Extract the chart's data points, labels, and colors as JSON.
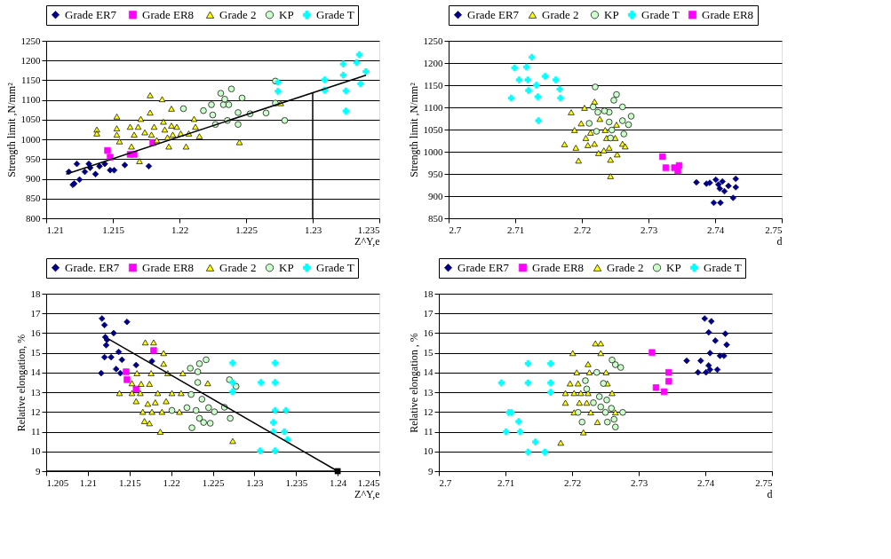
{
  "chart_data": [
    {
      "type": "scatter",
      "xlabel": "Z^Y,e",
      "ylabel": "Strength limit ,N/mm²",
      "xlim": [
        1.21,
        1.235
      ],
      "xticks": [
        1.21,
        1.215,
        1.22,
        1.225,
        1.23,
        1.235
      ],
      "ylim": [
        800,
        1250
      ],
      "yticks": [
        800,
        850,
        900,
        950,
        1000,
        1050,
        1100,
        1150,
        1200,
        1250
      ],
      "grid": "y",
      "legend": "top",
      "series": [
        {
          "name": "Grade  ER7",
          "color": "#000080",
          "marker": "diamond",
          "x": [
            1.2117,
            1.212,
            1.2121,
            1.2123,
            1.2125,
            1.2129,
            1.2132,
            1.2137,
            1.2133,
            1.214,
            1.2144,
            1.2148,
            1.2151,
            1.2159,
            1.2177
          ],
          "values": [
            918,
            885,
            888,
            938,
            898,
            918,
            938,
            912,
            928,
            932,
            938,
            922,
            922,
            935,
            932
          ]
        },
        {
          "name": "Grade  ER8",
          "color": "#ff00ff",
          "marker": "square",
          "x": [
            1.2146,
            1.2148,
            1.2163,
            1.2166,
            1.218
          ],
          "values": [
            972,
            955,
            962,
            962,
            992
          ]
        },
        {
          "name": "Grade 2",
          "color": "#ffff00",
          "marker": "triangle",
          "x": [
            1.2138,
            1.2138,
            1.2153,
            1.2153,
            1.2153,
            1.2155,
            1.2163,
            1.2164,
            1.217,
            1.2169,
            1.2171,
            1.2174,
            1.2178,
            1.2178,
            1.2179,
            1.2181,
            1.2183,
            1.2187,
            1.2188,
            1.2189,
            1.2191,
            1.2192,
            1.2194,
            1.2194,
            1.2195,
            1.2198,
            1.2201,
            1.2205,
            1.2207,
            1.2211,
            1.2212,
            1.2215,
            1.2245,
            1.2276,
            1.2166
          ],
          "values": [
            1025,
            1015,
            1058,
            1028,
            1012,
            995,
            1032,
            982,
            945,
            1032,
            1052,
            1018,
            1112,
            1068,
            1012,
            1032,
            998,
            1102,
            1045,
            1025,
            1005,
            982,
            1035,
            1078,
            1012,
            1032,
            1015,
            982,
            1015,
            1052,
            1032,
            1008,
            993,
            1092,
            1012
          ]
        },
        {
          "name": "KP",
          "color": "#ccffcc",
          "marker": "circle",
          "x": [
            1.2203,
            1.2218,
            1.2224,
            1.2225,
            1.2227,
            1.2231,
            1.2233,
            1.2236,
            1.2237,
            1.2239,
            1.2244,
            1.2244,
            1.2247,
            1.2253,
            1.2265,
            1.2272,
            1.2272,
            1.2279,
            1.2234
          ],
          "values": [
            1078,
            1073,
            1088,
            1062,
            1038,
            1117,
            1088,
            1048,
            1088,
            1128,
            1068,
            1038,
            1105,
            1065,
            1067,
            1148,
            1092,
            1048,
            1102
          ]
        },
        {
          "name": "Grade T",
          "color": "#00ffff",
          "marker": "cross",
          "x": [
            1.2274,
            1.2274,
            1.2309,
            1.2309,
            1.2323,
            1.2323,
            1.2325,
            1.2325,
            1.2335,
            1.2333,
            1.234,
            1.2336
          ],
          "values": [
            1145,
            1122,
            1151,
            1125,
            1191,
            1163,
            1123,
            1072,
            1215,
            1195,
            1172,
            1141
          ]
        },
        {
          "type": "line",
          "color": "#000000",
          "x": [
            1.2115,
            1.234
          ],
          "values": [
            912,
            1163
          ]
        },
        {
          "type": "line",
          "color": "#000000",
          "x": [
            1.23,
            1.23
          ],
          "values": [
            800,
            1118
          ]
        }
      ]
    },
    {
      "type": "scatter",
      "xlabel": "d",
      "ylabel": "Strength limit ,N/mm²",
      "xlim": [
        2.7,
        2.75
      ],
      "xticks": [
        2.7,
        2.71,
        2.72,
        2.73,
        2.74,
        2.75
      ],
      "ylim": [
        850,
        1250
      ],
      "yticks": [
        850,
        900,
        950,
        1000,
        1050,
        1100,
        1150,
        1200,
        1250
      ],
      "grid": "y",
      "legend": "top",
      "series": [
        {
          "name": "Grade ER7",
          "color": "#000080",
          "marker": "diamond",
          "x": [
            2.7372,
            2.7387,
            2.7401,
            2.7405,
            2.7407,
            2.7414,
            2.742,
            2.7431,
            2.7431,
            2.7427,
            2.7398,
            2.7408,
            2.7392,
            2.7411
          ],
          "values": [
            931,
            928,
            937,
            926,
            917,
            911,
            923,
            939,
            920,
            896,
            885,
            885,
            930,
            933
          ]
        },
        {
          "name": "Grade  2",
          "color": "#ffff00",
          "marker": "triangle",
          "x": [
            2.7184,
            2.7174,
            2.7189,
            2.7191,
            2.7195,
            2.7204,
            2.7199,
            2.7206,
            2.7209,
            2.7213,
            2.7219,
            2.7225,
            2.7227,
            2.7235,
            2.7237,
            2.7241,
            2.7243,
            2.7243,
            2.725,
            2.7253,
            2.7261,
            2.7265,
            2.7219,
            2.7233,
            2.7252
          ],
          "values": [
            1089,
            1017,
            1049,
            1009,
            980,
            1099,
            1064,
            1031,
            1015,
            1043,
            1113,
            997,
            1074,
            1049,
            1031,
            1009,
            982,
            945,
            1031,
            994,
            1018,
            1012,
            1018,
            1003,
            1061
          ]
        },
        {
          "name": "KP",
          "color": "#ccffcc",
          "marker": "circle",
          "x": [
            2.722,
            2.7217,
            2.7224,
            2.7211,
            2.7222,
            2.7241,
            2.7248,
            2.7252,
            2.7241,
            2.7245,
            2.7261,
            2.7261,
            2.7263,
            2.727,
            2.7274,
            2.7243,
            2.7234
          ],
          "values": [
            1146,
            1101,
            1089,
            1064,
            1046,
            1089,
            1116,
            1129,
            1067,
            1049,
            1101,
            1070,
            1040,
            1061,
            1080,
            1031,
            1092
          ]
        },
        {
          "name": "Grade T",
          "color": "#00ffff",
          "marker": "cross",
          "x": [
            2.7094,
            2.7099,
            2.7106,
            2.7117,
            2.7125,
            2.7119,
            2.712,
            2.7132,
            2.7134,
            2.7135,
            2.7145,
            2.7161,
            2.7167,
            2.7168
          ],
          "values": [
            1121,
            1189,
            1162,
            1191,
            1213,
            1162,
            1138,
            1150,
            1124,
            1070,
            1170,
            1162,
            1141,
            1121
          ]
        },
        {
          "name": "Grade ER8",
          "color": "#ff00ff",
          "marker": "square",
          "x": [
            2.7321,
            2.7326,
            2.7339,
            2.7346,
            2.7344
          ],
          "values": [
            989,
            964,
            964,
            969,
            957
          ]
        }
      ]
    },
    {
      "type": "scatter",
      "xlabel": "Z^Y,e",
      "ylabel": "Relative elongation, %",
      "xlim": [
        1.205,
        1.245
      ],
      "xticks": [
        1.205,
        1.21,
        1.215,
        1.22,
        1.225,
        1.23,
        1.235,
        1.24,
        1.245
      ],
      "ylim": [
        9,
        18
      ],
      "yticks": [
        9,
        10,
        11,
        12,
        13,
        14,
        15,
        16,
        17,
        18
      ],
      "grid": "y",
      "legend": "top",
      "series": [
        {
          "name": "Grade. ER7",
          "color": "#000080",
          "marker": "diamond",
          "x": [
            1.2116,
            1.2117,
            1.212,
            1.2121,
            1.2122,
            1.212,
            1.2128,
            1.2131,
            1.2134,
            1.2137,
            1.2141,
            1.2139,
            1.2147,
            1.2158,
            1.2177,
            1.2123
          ],
          "values": [
            13.97,
            16.74,
            16.41,
            15.8,
            15.39,
            14.78,
            14.78,
            16.0,
            14.18,
            15.05,
            14.65,
            13.97,
            16.57,
            14.38,
            14.58,
            15.66
          ]
        },
        {
          "name": "Grade  ER8",
          "color": "#ff00ff",
          "marker": "square",
          "x": [
            1.2146,
            1.2147,
            1.2158,
            1.2179
          ],
          "values": [
            14.04,
            13.64,
            13.16,
            15.12
          ]
        },
        {
          "name": "Grade 2",
          "color": "#ffff00",
          "marker": "triangle",
          "x": [
            1.2138,
            1.2153,
            1.2153,
            1.2158,
            1.2159,
            1.2163,
            1.2166,
            1.2169,
            1.2168,
            1.2174,
            1.2174,
            1.2176,
            1.2177,
            1.2179,
            1.2181,
            1.2184,
            1.2187,
            1.2189,
            1.2191,
            1.2191,
            1.2194,
            1.2196,
            1.2201,
            1.221,
            1.2212,
            1.2214,
            1.2244,
            1.2274,
            1.2164,
            1.2172
          ],
          "values": [
            12.96,
            12.96,
            13.46,
            12.55,
            13.97,
            12.96,
            12.01,
            15.53,
            11.54,
            11.43,
            13.43,
            13.97,
            12.01,
            15.53,
            12.49,
            12.96,
            11.0,
            12.01,
            14.45,
            14.99,
            12.55,
            13.97,
            12.96,
            12.01,
            12.96,
            13.97,
            13.46,
            10.53,
            13.43,
            12.42
          ]
        },
        {
          "name": "KP",
          "color": "#ccffcc",
          "marker": "circle",
          "x": [
            1.2201,
            1.2219,
            1.2223,
            1.2225,
            1.2224,
            1.223,
            1.2232,
            1.2234,
            1.2232,
            1.2234,
            1.2237,
            1.2239,
            1.2242,
            1.2245,
            1.2247,
            1.2252,
            1.2264,
            1.2271,
            1.227,
            1.2278
          ],
          "values": [
            12.08,
            12.22,
            14.22,
            11.2,
            12.89,
            12.08,
            14.04,
            14.45,
            13.5,
            11.68,
            12.65,
            11.47,
            14.65,
            12.22,
            11.43,
            12.01,
            12.24,
            11.68,
            13.64,
            13.3
          ]
        },
        {
          "name": "Grade T",
          "color": "#00ffff",
          "marker": "cross",
          "x": [
            1.2274,
            1.2274,
            1.2274,
            1.2308,
            1.2307,
            1.2325,
            1.2325,
            1.2325,
            1.2323,
            1.2323,
            1.2338,
            1.2336,
            1.234,
            1.2325
          ],
          "values": [
            14.49,
            13.5,
            13.03,
            13.5,
            10.03,
            14.49,
            13.5,
            12.08,
            11.47,
            11.0,
            12.08,
            11.0,
            10.59,
            10.03
          ]
        },
        {
          "type": "line",
          "color": "#000000",
          "x": [
            1.2125,
            1.24
          ],
          "values": [
            15.7,
            9
          ]
        },
        {
          "type": "line",
          "color": "#000000",
          "x": [
            1.205,
            1.24
          ],
          "values": [
            9,
            9
          ]
        },
        {
          "color": "#000000",
          "marker": "square",
          "x": [
            1.24
          ],
          "values": [
            9
          ]
        }
      ]
    },
    {
      "type": "scatter",
      "xlabel": "d",
      "ylabel": "Relative elongation , %",
      "xlim": [
        2.7,
        2.75
      ],
      "xticks": [
        2.7,
        2.71,
        2.72,
        2.73,
        2.74,
        2.75
      ],
      "ylim": [
        9,
        18
      ],
      "yticks": [
        9,
        10,
        11,
        12,
        13,
        14,
        15,
        16,
        17,
        18
      ],
      "grid": "y",
      "legend": "top",
      "series": [
        {
          "name": "Grade ER7",
          "color": "#000080",
          "marker": "diamond",
          "x": [
            2.7372,
            2.7393,
            2.7389,
            2.7399,
            2.7409,
            2.7405,
            2.7407,
            2.7415,
            2.7405,
            2.7401,
            2.7418,
            2.7428,
            2.743,
            2.7432,
            2.7422,
            2.7407
          ],
          "values": [
            14.6,
            14.6,
            14.01,
            16.74,
            16.6,
            16.04,
            14.99,
            15.62,
            14.36,
            14.01,
            14.15,
            14.85,
            15.97,
            15.41,
            14.85,
            14.15
          ]
        },
        {
          "name": "Grade ER8",
          "color": "#ff00ff",
          "marker": "square",
          "x": [
            2.732,
            2.7326,
            2.7338,
            2.7345,
            2.7345
          ],
          "values": [
            15.02,
            13.24,
            13.03,
            14.01,
            13.56
          ]
        },
        {
          "name": "Grade 2",
          "color": "#ffff00",
          "marker": "triangle",
          "x": [
            2.7183,
            2.719,
            2.719,
            2.7197,
            2.7201,
            2.7203,
            2.7207,
            2.7209,
            2.7211,
            2.7213,
            2.7217,
            2.7222,
            2.7224,
            2.7224,
            2.7226,
            2.7228,
            2.7235,
            2.7238,
            2.7243,
            2.7243,
            2.7251,
            2.7253,
            2.726,
            2.7265,
            2.7203
          ],
          "values": [
            10.44,
            12.96,
            12.47,
            13.45,
            14.99,
            12.96,
            14.01,
            13.45,
            12.47,
            12.96,
            10.97,
            12.47,
            14.43,
            12.96,
            14.01,
            11.98,
            15.48,
            11.49,
            15.48,
            14.99,
            14.01,
            13.45,
            12.96,
            11.98,
            11.98
          ]
        },
        {
          "name": "KP",
          "color": "#ccffcc",
          "marker": "circle",
          "x": [
            2.7209,
            2.7215,
            2.722,
            2.7222,
            2.7232,
            2.7237,
            2.7241,
            2.7243,
            2.7247,
            2.725,
            2.7252,
            2.7253,
            2.7259,
            2.726,
            2.7263,
            2.7265,
            2.7265,
            2.7273,
            2.7276
          ],
          "values": [
            11.98,
            11.49,
            13.59,
            13.17,
            12.47,
            14.01,
            12.78,
            12.26,
            13.45,
            11.98,
            12.61,
            11.49,
            12.19,
            14.64,
            11.63,
            11.24,
            14.4,
            14.26,
            11.98
          ]
        },
        {
          "name": "Grade T",
          "color": "#00ffff",
          "marker": "cross",
          "x": [
            2.7094,
            2.7101,
            2.7105,
            2.7109,
            2.712,
            2.7122,
            2.7134,
            2.7134,
            2.7134,
            2.7145,
            2.7159,
            2.7168,
            2.7168,
            2.7168
          ],
          "values": [
            13.48,
            11.0,
            11.98,
            11.98,
            11.52,
            11.0,
            14.46,
            13.48,
            9.97,
            10.48,
            9.97,
            14.46,
            13.48,
            13.0
          ]
        }
      ]
    }
  ]
}
